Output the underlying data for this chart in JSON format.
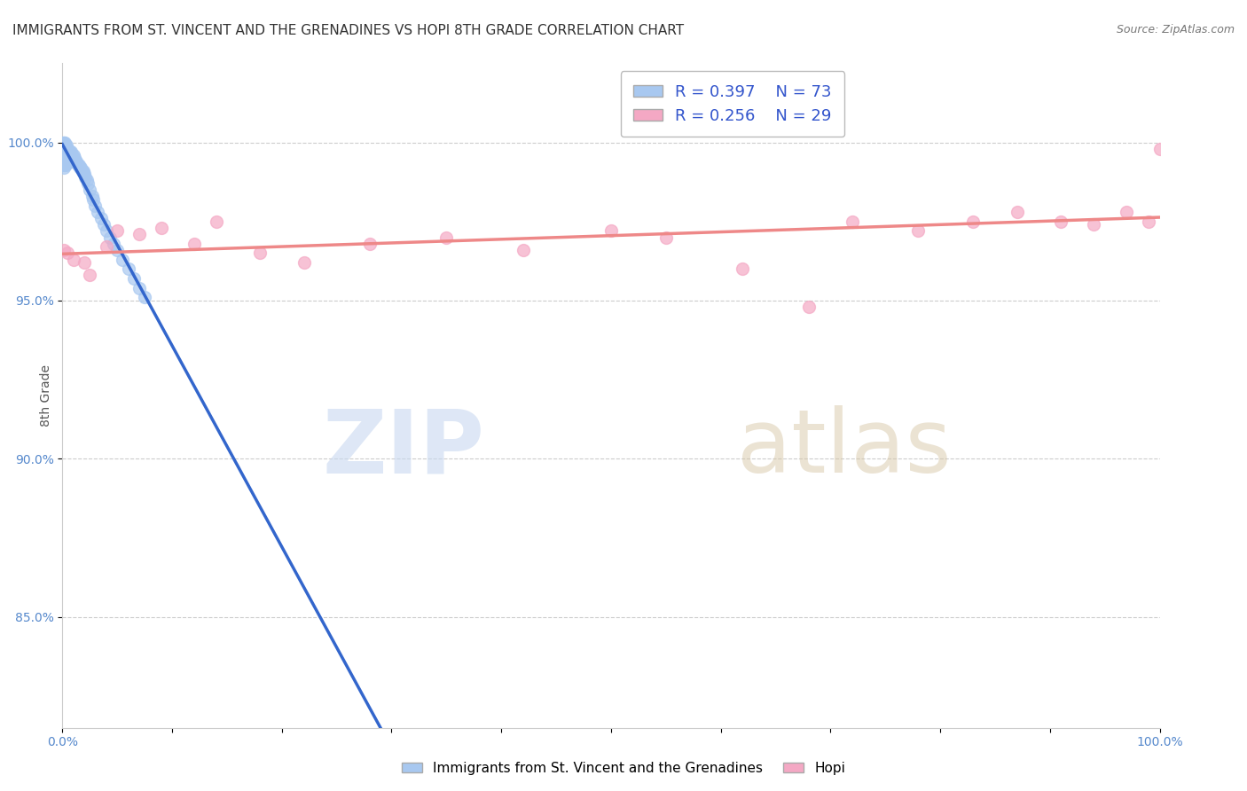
{
  "title": "IMMIGRANTS FROM ST. VINCENT AND THE GRENADINES VS HOPI 8TH GRADE CORRELATION CHART",
  "source": "Source: ZipAtlas.com",
  "ylabel": "8th Grade",
  "xmin": 0.0,
  "xmax": 1.0,
  "ymin": 0.815,
  "ymax": 1.025,
  "legend1_label": "Immigrants from St. Vincent and the Grenadines",
  "legend2_label": "Hopi",
  "r1": 0.397,
  "n1": 73,
  "r2": 0.256,
  "n2": 29,
  "color1": "#a8c8f0",
  "color2": "#f4a8c4",
  "line1_color": "#3366cc",
  "line2_color": "#ee8888",
  "scatter1_x": [
    0.0005,
    0.001,
    0.001,
    0.001,
    0.001,
    0.001,
    0.001,
    0.001,
    0.001,
    0.001,
    0.0015,
    0.0015,
    0.002,
    0.002,
    0.002,
    0.002,
    0.002,
    0.002,
    0.002,
    0.003,
    0.003,
    0.003,
    0.003,
    0.003,
    0.003,
    0.004,
    0.004,
    0.004,
    0.004,
    0.004,
    0.005,
    0.005,
    0.005,
    0.006,
    0.006,
    0.006,
    0.007,
    0.007,
    0.008,
    0.008,
    0.009,
    0.009,
    0.01,
    0.01,
    0.011,
    0.012,
    0.013,
    0.014,
    0.015,
    0.016,
    0.017,
    0.018,
    0.019,
    0.02,
    0.021,
    0.022,
    0.023,
    0.025,
    0.027,
    0.028,
    0.03,
    0.032,
    0.035,
    0.038,
    0.04,
    0.043,
    0.047,
    0.05,
    0.055,
    0.06,
    0.065,
    0.07,
    0.075
  ],
  "scatter1_y": [
    1.0,
    1.0,
    0.999,
    0.998,
    0.997,
    0.996,
    0.995,
    0.994,
    0.993,
    0.992,
    1.0,
    0.998,
    1.0,
    0.999,
    0.998,
    0.997,
    0.996,
    0.995,
    0.993,
    0.999,
    0.998,
    0.997,
    0.996,
    0.995,
    0.993,
    0.999,
    0.998,
    0.997,
    0.996,
    0.994,
    0.998,
    0.997,
    0.995,
    0.997,
    0.996,
    0.994,
    0.997,
    0.995,
    0.997,
    0.995,
    0.996,
    0.994,
    0.996,
    0.994,
    0.995,
    0.994,
    0.994,
    0.993,
    0.993,
    0.992,
    0.992,
    0.991,
    0.991,
    0.99,
    0.989,
    0.988,
    0.987,
    0.985,
    0.983,
    0.982,
    0.98,
    0.978,
    0.976,
    0.974,
    0.972,
    0.97,
    0.968,
    0.966,
    0.963,
    0.96,
    0.957,
    0.954,
    0.951
  ],
  "scatter2_x": [
    0.001,
    0.005,
    0.01,
    0.02,
    0.025,
    0.04,
    0.05,
    0.07,
    0.09,
    0.12,
    0.14,
    0.18,
    0.22,
    0.28,
    0.35,
    0.42,
    0.5,
    0.55,
    0.62,
    0.68,
    0.72,
    0.78,
    0.83,
    0.87,
    0.91,
    0.94,
    0.97,
    0.99,
    1.0
  ],
  "scatter2_y": [
    0.966,
    0.965,
    0.963,
    0.962,
    0.958,
    0.967,
    0.972,
    0.971,
    0.973,
    0.968,
    0.975,
    0.965,
    0.962,
    0.968,
    0.97,
    0.966,
    0.972,
    0.97,
    0.96,
    0.948,
    0.975,
    0.972,
    0.975,
    0.978,
    0.975,
    0.974,
    0.978,
    0.975,
    0.998
  ],
  "watermark_zip": "ZIP",
  "watermark_atlas": "atlas",
  "grid_color": "#cccccc",
  "background_color": "#ffffff",
  "ytick_positions": [
    1.0,
    0.95,
    0.9,
    0.85
  ],
  "ytick_labels": [
    "100.0%",
    "95.0%",
    "90.0%",
    "85.0%"
  ]
}
